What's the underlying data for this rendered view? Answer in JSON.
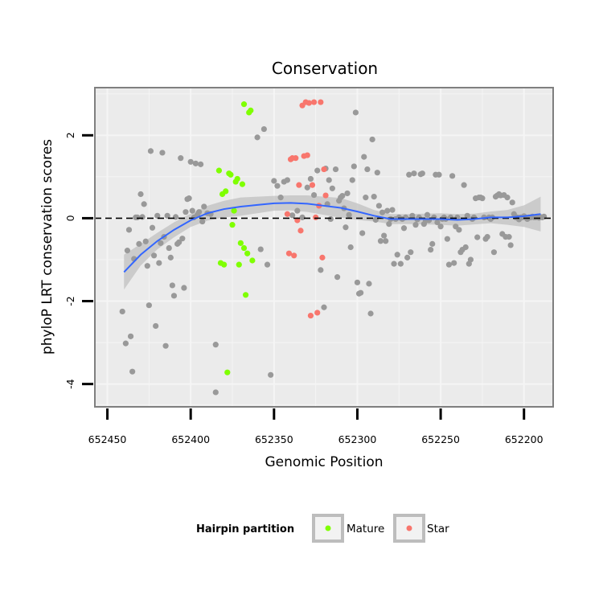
{
  "chart_data": {
    "type": "scatter",
    "title": "Conservation",
    "xlabel": "Genomic Position",
    "ylabel": "phyloP LRT conservation scores",
    "x_reversed": true,
    "xlim": [
      652457.5,
      652182.5
    ],
    "ylim": [
      -4.55,
      3.15
    ],
    "x_ticks": [
      652450,
      652400,
      652350,
      652300,
      652250,
      652200
    ],
    "x_tick_labels": [
      "652450",
      "652400",
      "652350",
      "652300",
      "652250",
      "652200"
    ],
    "y_ticks": [
      -4,
      -2,
      0,
      2
    ],
    "y_tick_labels": [
      "-4",
      "-2",
      "0",
      "2"
    ],
    "grid": true,
    "reference_line": {
      "y": 0,
      "style": "dashed",
      "color": "#000000"
    },
    "legend": {
      "title": "Hairpin partition",
      "position": "bottom",
      "entries": [
        {
          "label": "Mature",
          "color": "#7FFF00"
        },
        {
          "label": "Star",
          "color": "#F8766D"
        }
      ]
    },
    "colors": {
      "background": "#EBEBEB",
      "grid": "#F5F5F5",
      "other": "#999999",
      "mature": "#7FFF00",
      "star": "#F8766D",
      "smooth_line": "#3366FF",
      "ribbon": "#BDBDBD"
    },
    "series": [
      {
        "name": "Other",
        "color": "#999999",
        "points": [
          [
            652441,
            -2.25
          ],
          [
            652439,
            -3.02
          ],
          [
            652438,
            -0.78
          ],
          [
            652437,
            -0.28
          ],
          [
            652436,
            -2.85
          ],
          [
            652435,
            -3.7
          ],
          [
            652434,
            -0.98
          ],
          [
            652433,
            0.02
          ],
          [
            652432,
            0.02
          ],
          [
            652431,
            -0.62
          ],
          [
            652430,
            0.58
          ],
          [
            652429,
            0.03
          ],
          [
            652428,
            0.34
          ],
          [
            652427,
            -0.56
          ],
          [
            652426,
            -1.15
          ],
          [
            652425,
            -2.1
          ],
          [
            652424,
            1.62
          ],
          [
            652423,
            -0.23
          ],
          [
            652422,
            -0.9
          ],
          [
            652421,
            -2.6
          ],
          [
            652420,
            0.06
          ],
          [
            652419,
            -1.08
          ],
          [
            652418,
            -0.6
          ],
          [
            652417,
            1.58
          ],
          [
            652416,
            -0.45
          ],
          [
            652415,
            -3.08
          ],
          [
            652414,
            0.06
          ],
          [
            652413,
            -0.72
          ],
          [
            652412,
            -0.95
          ],
          [
            652411,
            -1.62
          ],
          [
            652410,
            -1.87
          ],
          [
            652409,
            0.03
          ],
          [
            652408,
            -0.62
          ],
          [
            652407,
            -0.58
          ],
          [
            652406,
            1.45
          ],
          [
            652405,
            -0.49
          ],
          [
            652404,
            -1.68
          ],
          [
            652403,
            0.15
          ],
          [
            652402,
            0.46
          ],
          [
            652401,
            0.48
          ],
          [
            652400,
            1.36
          ],
          [
            652399,
            0.18
          ],
          [
            652398,
            0.02
          ],
          [
            652397,
            1.32
          ],
          [
            652396,
            0.08
          ],
          [
            652395,
            0.15
          ],
          [
            652394,
            1.3
          ],
          [
            652393,
            -0.08
          ],
          [
            652392,
            0.28
          ],
          [
            652390,
            0.12
          ],
          [
            652388,
            0.1
          ],
          [
            652385,
            -3.05
          ],
          [
            652385,
            -4.2
          ],
          [
            652360,
            1.95
          ],
          [
            652358,
            -0.75
          ],
          [
            652356,
            2.15
          ],
          [
            652354,
            -1.12
          ],
          [
            652352,
            -3.78
          ],
          [
            652350,
            0.9
          ],
          [
            652348,
            0.78
          ],
          [
            652346,
            0.5
          ],
          [
            652344,
            0.88
          ],
          [
            652342,
            0.92
          ],
          [
            652339,
            0.07
          ],
          [
            652336,
            0.18
          ],
          [
            652333,
            0.02
          ],
          [
            652330,
            0.74
          ],
          [
            652328,
            0.95
          ],
          [
            652326,
            0.56
          ],
          [
            652324,
            1.15
          ],
          [
            652322,
            -1.25
          ],
          [
            652320,
            -2.15
          ],
          [
            652319,
            1.2
          ],
          [
            652318,
            0.34
          ],
          [
            652317,
            0.92
          ],
          [
            652316,
            -0.02
          ],
          [
            652315,
            0.72
          ],
          [
            652313,
            1.18
          ],
          [
            652312,
            -1.42
          ],
          [
            652311,
            0.42
          ],
          [
            652310,
            0.5
          ],
          [
            652309,
            0.54
          ],
          [
            652308,
            0.24
          ],
          [
            652307,
            -0.22
          ],
          [
            652306,
            0.6
          ],
          [
            652305,
            0.08
          ],
          [
            652304,
            -0.7
          ],
          [
            652303,
            0.92
          ],
          [
            652302,
            1.25
          ],
          [
            652301,
            2.55
          ],
          [
            652300,
            -1.55
          ],
          [
            652299,
            -1.82
          ],
          [
            652298,
            -1.8
          ],
          [
            652297,
            -0.36
          ],
          [
            652296,
            1.48
          ],
          [
            652295,
            0.5
          ],
          [
            652294,
            1.18
          ],
          [
            652293,
            -1.58
          ],
          [
            652292,
            -2.3
          ],
          [
            652291,
            1.9
          ],
          [
            652290,
            0.52
          ],
          [
            652289,
            -0.04
          ],
          [
            652288,
            1.1
          ],
          [
            652287,
            0.3
          ],
          [
            652286,
            -0.55
          ],
          [
            652285,
            0.14
          ],
          [
            652284,
            -0.42
          ],
          [
            652283,
            -0.55
          ],
          [
            652282,
            0.18
          ],
          [
            652281,
            -0.14
          ],
          [
            652280,
            -0.02
          ],
          [
            652279,
            0.2
          ],
          [
            652278,
            -1.1
          ],
          [
            652277,
            -0.02
          ],
          [
            652276,
            -0.88
          ],
          [
            652275,
            0.02
          ],
          [
            652274,
            -1.1
          ],
          [
            652273,
            -0.02
          ],
          [
            652272,
            -0.24
          ],
          [
            652271,
            0.02
          ],
          [
            652270,
            -0.95
          ],
          [
            652269,
            1.05
          ],
          [
            652268,
            -0.82
          ],
          [
            652267,
            0.06
          ],
          [
            652266,
            1.08
          ],
          [
            652265,
            -0.16
          ],
          [
            652264,
            -0.03
          ],
          [
            652263,
            0.02
          ],
          [
            652262,
            1.06
          ],
          [
            652261,
            1.08
          ],
          [
            652260,
            -0.14
          ],
          [
            652259,
            -0.06
          ],
          [
            652258,
            0.08
          ],
          [
            652257,
            -0.05
          ],
          [
            652256,
            -0.76
          ],
          [
            652255,
            -0.62
          ],
          [
            652254,
            0.02
          ],
          [
            652253,
            1.05
          ],
          [
            652252,
            -0.1
          ],
          [
            652251,
            1.05
          ],
          [
            652250,
            -0.2
          ],
          [
            652249,
            -0.02
          ],
          [
            652248,
            0.02
          ],
          [
            652247,
            -0.02
          ],
          [
            652246,
            -0.5
          ],
          [
            652245,
            -1.12
          ],
          [
            652244,
            0.02
          ],
          [
            652243,
            1.02
          ],
          [
            652242,
            -1.08
          ],
          [
            652241,
            -0.2
          ],
          [
            652240,
            0.02
          ],
          [
            652239,
            -0.28
          ],
          [
            652238,
            -0.82
          ],
          [
            652237,
            -0.76
          ],
          [
            652236,
            0.8
          ],
          [
            652235,
            -0.7
          ],
          [
            652234,
            0.06
          ],
          [
            652233,
            -1.1
          ],
          [
            652232,
            -1.0
          ],
          [
            652231,
            -0.02
          ],
          [
            652230,
            0.02
          ],
          [
            652229,
            0.48
          ],
          [
            652228,
            -0.46
          ],
          [
            652227,
            0.5
          ],
          [
            652226,
            0.5
          ],
          [
            652225,
            0.48
          ],
          [
            652224,
            0.02
          ],
          [
            652223,
            -0.5
          ],
          [
            652222,
            -0.45
          ],
          [
            652221,
            0.02
          ],
          [
            652220,
            -0.02
          ],
          [
            652219,
            0.02
          ],
          [
            652218,
            -0.82
          ],
          [
            652217,
            0.52
          ],
          [
            652216,
            0.55
          ],
          [
            652215,
            0.58
          ],
          [
            652214,
            0.55
          ],
          [
            652213,
            -0.38
          ],
          [
            652212,
            0.56
          ],
          [
            652211,
            -0.45
          ],
          [
            652210,
            0.5
          ],
          [
            652209,
            -0.45
          ],
          [
            652208,
            -0.65
          ],
          [
            652207,
            0.38
          ],
          [
            652206,
            0.1
          ],
          [
            652205,
            0.02
          ],
          [
            652204,
            0.02
          ],
          [
            652203,
            -0.03
          ],
          [
            652202,
            0.02
          ],
          [
            652201,
            0.02
          ],
          [
            652200,
            0.05
          ],
          [
            652199,
            0.02
          ],
          [
            652198,
            -0.02
          ],
          [
            652197,
            0.02
          ],
          [
            652196,
            0.02
          ],
          [
            652195,
            0.04
          ],
          [
            652194,
            0.02
          ],
          [
            652193,
            0.02
          ],
          [
            652192,
            0.04
          ],
          [
            652191,
            0.01
          ],
          [
            652190,
            0.03
          ],
          [
            652189,
            0.02
          ],
          [
            652188,
            0.04
          ]
        ]
      },
      {
        "name": "Mature",
        "color": "#7FFF00",
        "points": [
          [
            652383,
            1.15
          ],
          [
            652382,
            -1.08
          ],
          [
            652381,
            0.58
          ],
          [
            652380,
            -1.12
          ],
          [
            652379,
            0.65
          ],
          [
            652378,
            -3.72
          ],
          [
            652377,
            1.08
          ],
          [
            652376,
            1.05
          ],
          [
            652375,
            -0.16
          ],
          [
            652374,
            0.18
          ],
          [
            652373,
            0.88
          ],
          [
            652372,
            0.95
          ],
          [
            652371,
            -1.12
          ],
          [
            652370,
            -0.6
          ],
          [
            652369,
            0.82
          ],
          [
            652368,
            2.75
          ],
          [
            652368,
            -0.72
          ],
          [
            652367,
            -1.85
          ],
          [
            652366,
            -0.85
          ],
          [
            652365,
            2.55
          ],
          [
            652364,
            2.6
          ],
          [
            652363,
            -1.02
          ]
        ]
      },
      {
        "name": "Star",
        "color": "#F8766D",
        "points": [
          [
            652342,
            0.1
          ],
          [
            652341,
            -0.85
          ],
          [
            652340,
            1.42
          ],
          [
            652339,
            1.45
          ],
          [
            652338,
            -0.9
          ],
          [
            652337,
            1.45
          ],
          [
            652336,
            -0.05
          ],
          [
            652335,
            0.8
          ],
          [
            652334,
            -0.3
          ],
          [
            652333,
            2.72
          ],
          [
            652332,
            1.5
          ],
          [
            652331,
            2.8
          ],
          [
            652330,
            1.52
          ],
          [
            652329,
            2.78
          ],
          [
            652328,
            -2.35
          ],
          [
            652327,
            0.8
          ],
          [
            652326,
            2.8
          ],
          [
            652325,
            0.02
          ],
          [
            652324,
            -2.28
          ],
          [
            652323,
            0.3
          ],
          [
            652322,
            2.8
          ],
          [
            652321,
            -0.95
          ],
          [
            652320,
            1.18
          ],
          [
            652319,
            0.55
          ]
        ]
      }
    ],
    "smooth": {
      "x": [
        652440,
        652430,
        652420,
        652410,
        652400,
        652390,
        652380,
        652370,
        652360,
        652350,
        652340,
        652330,
        652320,
        652310,
        652300,
        652290,
        652280,
        652270,
        652260,
        652250,
        652240,
        652230,
        652220,
        652210,
        652200,
        652190
      ],
      "y": [
        -1.3,
        -0.88,
        -0.55,
        -0.28,
        -0.05,
        0.12,
        0.22,
        0.28,
        0.32,
        0.36,
        0.37,
        0.35,
        0.3,
        0.25,
        0.16,
        0.06,
        -0.02,
        -0.02,
        -0.02,
        -0.02,
        -0.04,
        -0.02,
        0.02,
        0.02,
        0.05,
        0.1
      ],
      "se": [
        0.42,
        0.26,
        0.2,
        0.18,
        0.16,
        0.18,
        0.2,
        0.22,
        0.2,
        0.18,
        0.18,
        0.2,
        0.22,
        0.24,
        0.2,
        0.14,
        0.12,
        0.12,
        0.13,
        0.14,
        0.14,
        0.13,
        0.14,
        0.18,
        0.26,
        0.42
      ]
    }
  }
}
